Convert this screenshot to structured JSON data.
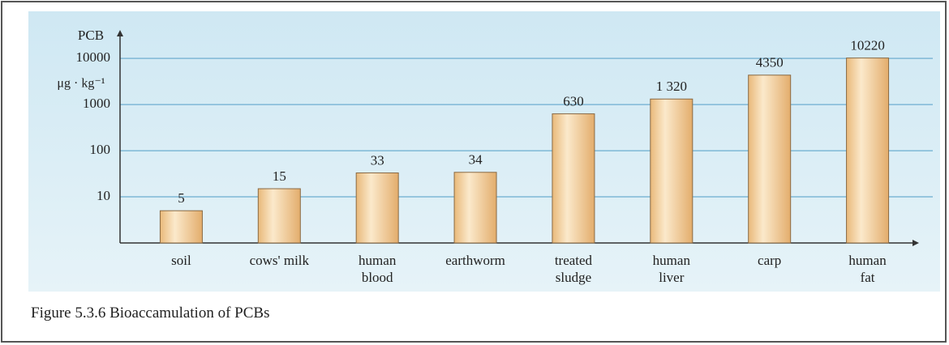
{
  "chart_data": {
    "type": "bar",
    "y_label": "PCB",
    "y_unit": "μg · kg⁻¹",
    "caption": "Figure 5.3.6 Bioaccamulation of PCBs",
    "categories": [
      "soil",
      "cows' milk",
      "human\nblood",
      "earthworm",
      "treated\nsludge",
      "human\nliver",
      "carp",
      "human\nfat"
    ],
    "values": [
      5,
      15,
      33,
      34,
      630,
      1320,
      4350,
      10220
    ],
    "value_labels": [
      "5",
      "15",
      "33",
      "34",
      "630",
      "1 320",
      "4350",
      "10220"
    ],
    "color": "#f3d3a2",
    "ylim": [
      1,
      30000
    ],
    "yticks": [
      10,
      100,
      1000,
      10000
    ],
    "log_scale": true,
    "grid": true
  }
}
